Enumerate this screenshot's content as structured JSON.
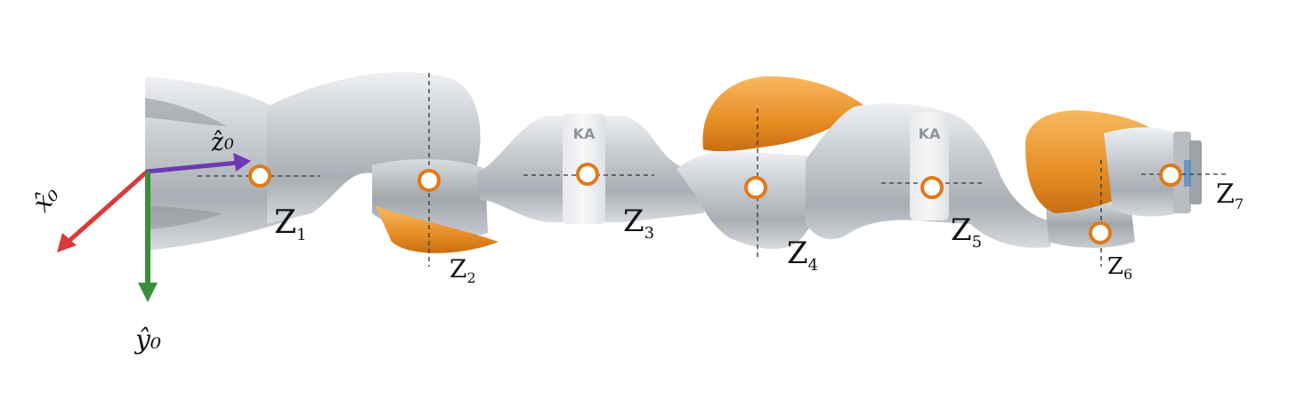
{
  "diagram": {
    "subject": "robot-arm",
    "base_frame": {
      "x_label": "x̂₀",
      "y_label": "ŷ₀",
      "z_label": "ẑ₀",
      "x_color": "#d93a3a",
      "y_color": "#3a8f3a",
      "z_color": "#6c3ab0"
    },
    "joints": [
      {
        "id": "z1",
        "label": "Z",
        "sub": "1"
      },
      {
        "id": "z2",
        "label": "Z",
        "sub": "2"
      },
      {
        "id": "z3",
        "label": "Z",
        "sub": "3"
      },
      {
        "id": "z4",
        "label": "Z",
        "sub": "4"
      },
      {
        "id": "z5",
        "label": "Z",
        "sub": "5"
      },
      {
        "id": "z6",
        "label": "Z",
        "sub": "6"
      },
      {
        "id": "z7",
        "label": "Z",
        "sub": "7"
      }
    ],
    "brand_marks": [
      "KA",
      "KA"
    ],
    "colors": {
      "joint_marker": "#e07a1a",
      "link_orange": "#f0a03a",
      "link_gray": "#c4c8cd"
    }
  }
}
